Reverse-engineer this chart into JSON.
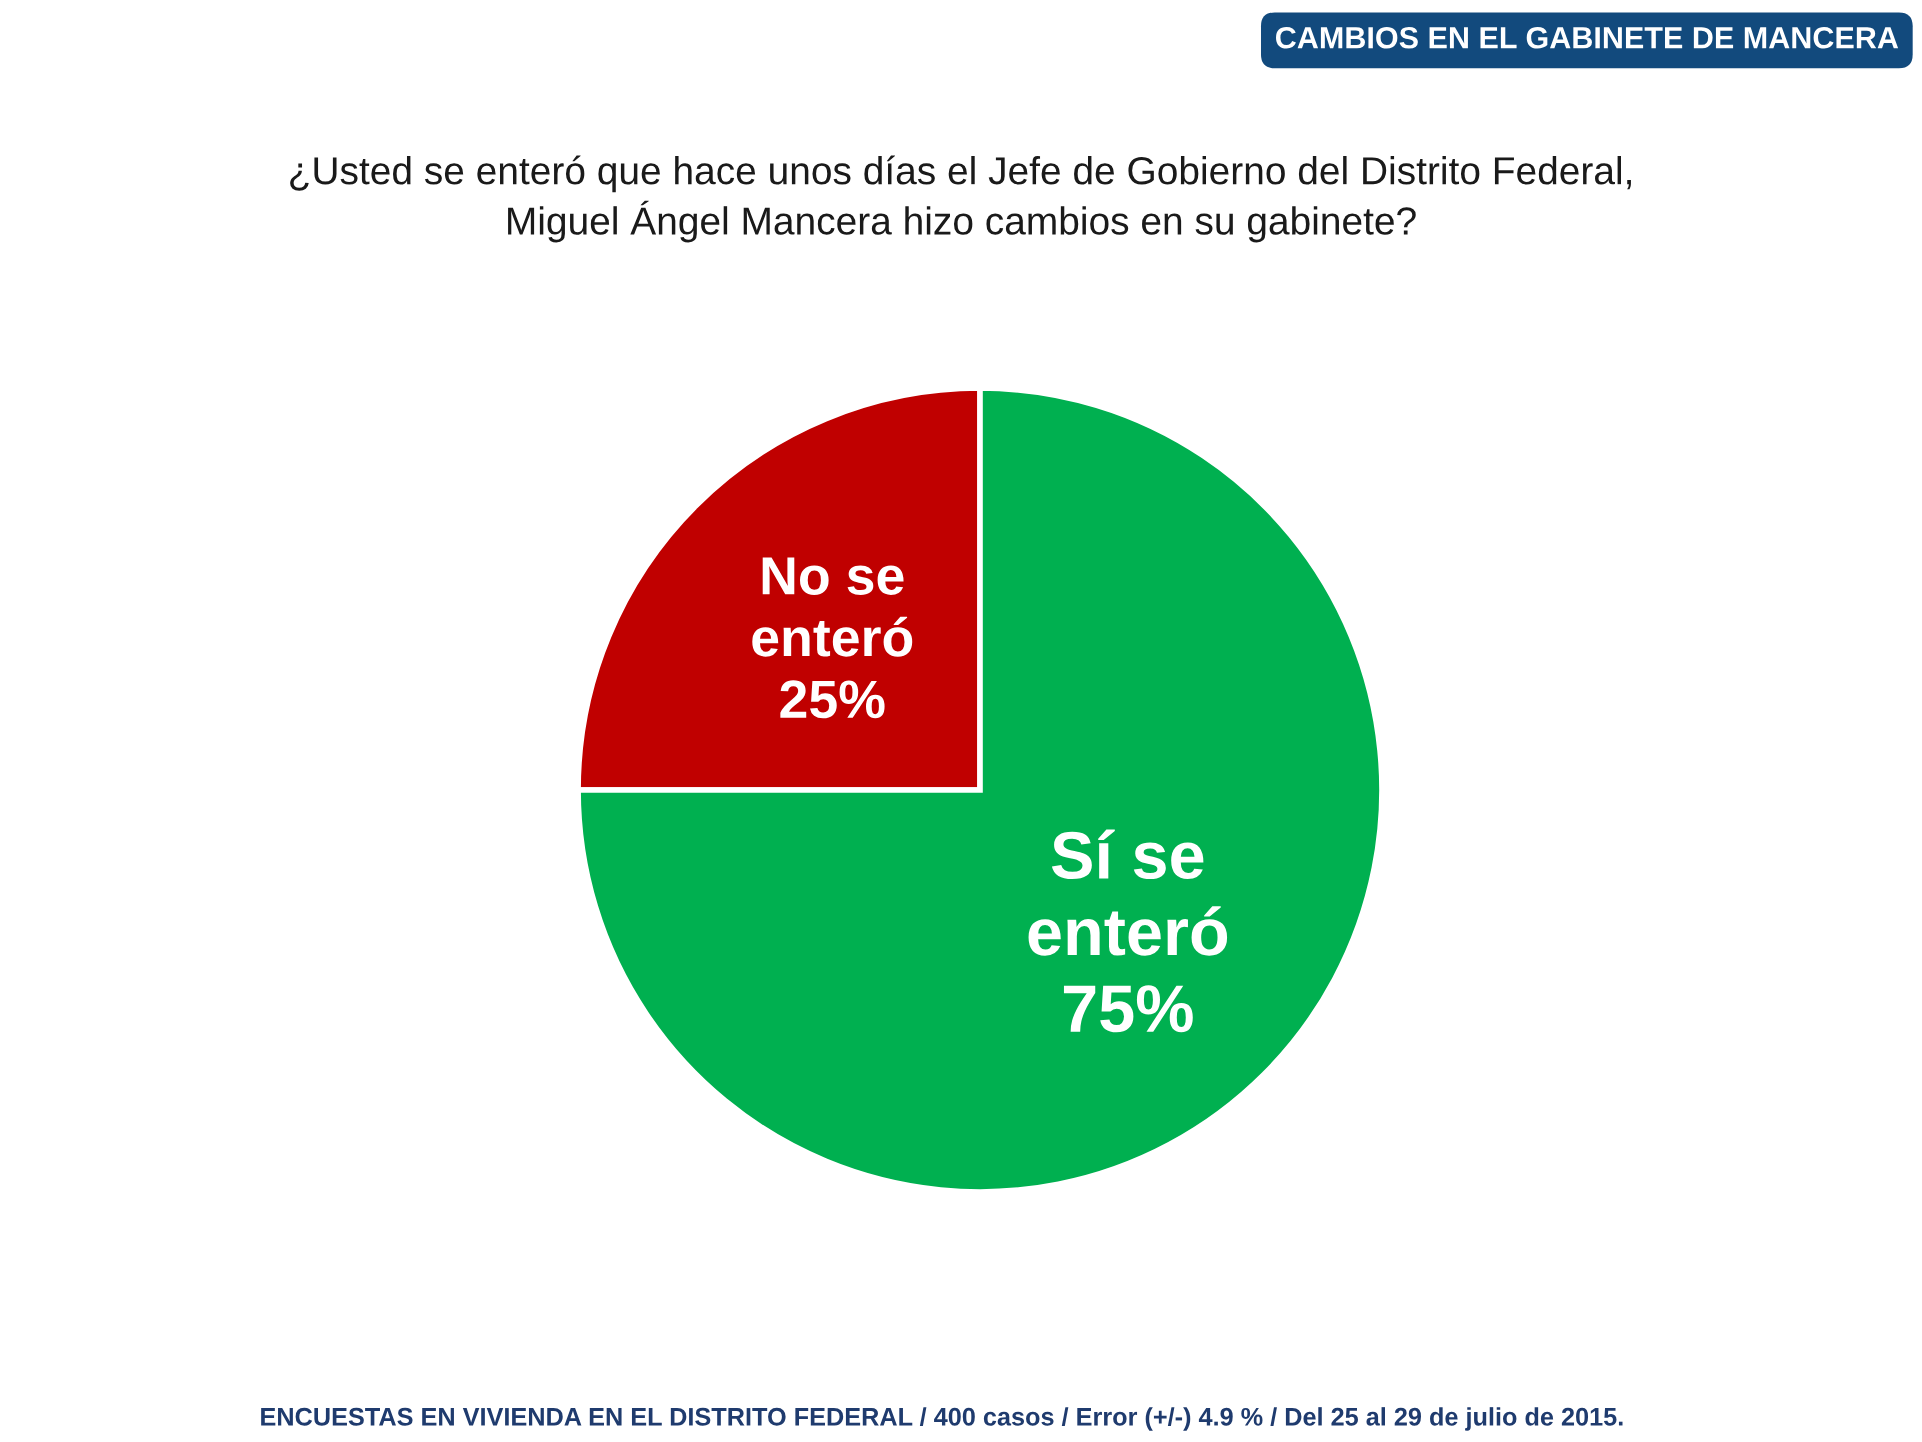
{
  "chart_data": {
    "type": "pie",
    "title": "CAMBIOS EN EL GABINETE DE MANCERA",
    "subtitle": "¿Usted se enteró que hace unos días el Jefe de Gobierno del Distrito Federal,\nMiguel Ángel Mancera hizo cambios en su gabinete?",
    "categories": [
      "No se\nenteró",
      "Sí se\nenteró"
    ],
    "values": [
      25,
      75
    ],
    "colors": [
      "#c00000",
      "#00b050"
    ],
    "value_labels": [
      "25%",
      "75%"
    ],
    "annotations": [
      "ENCUESTAS EN VIVIENDA EN EL DISTRITO FEDERAL / 400 casos / Error (+/-) 4.9 % / Del 25 al 29 de julio de 2015."
    ]
  }
}
